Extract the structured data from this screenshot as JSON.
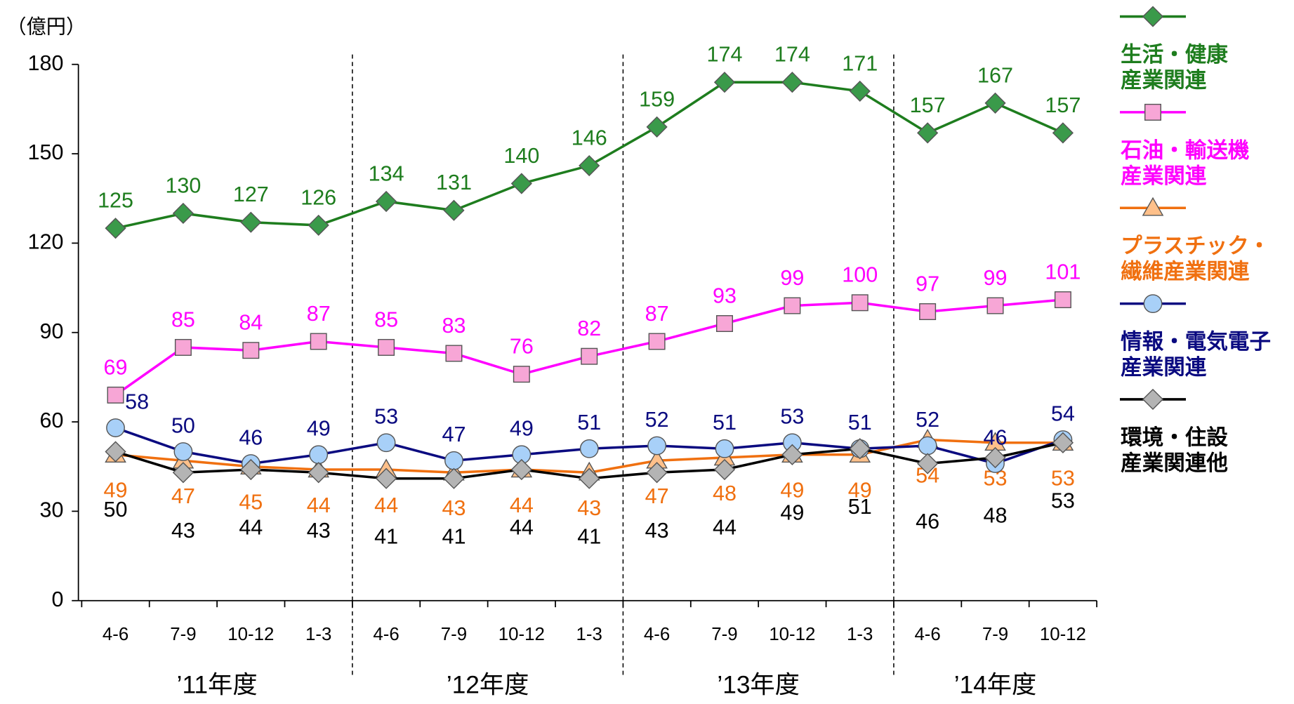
{
  "chart_data": {
    "type": "line",
    "y_label": "（億円）",
    "categories": [
      "4-6",
      "7-9",
      "10-12",
      "1-3",
      "4-6",
      "7-9",
      "10-12",
      "1-3",
      "4-6",
      "7-9",
      "10-12",
      "1-3",
      "4-6",
      "7-9",
      "10-12"
    ],
    "periods": [
      "’11年度",
      "’12年度",
      "’13年度",
      "’14年度"
    ],
    "ylim": [
      0,
      180
    ],
    "yticks": [
      0,
      30,
      60,
      90,
      120,
      150,
      180
    ],
    "grid": false,
    "legend": "right",
    "series": [
      {
        "name": "生活・健康\n産業関連",
        "color": "#1e7d1e",
        "marker": "diamond",
        "marker_color": "#3a9a4a",
        "values": [
          125,
          130,
          127,
          126,
          134,
          131,
          140,
          146,
          159,
          174,
          174,
          171,
          157,
          167,
          157
        ]
      },
      {
        "name": "石油・輸送機\n産業関連",
        "color": "#ff00ff",
        "marker": "square",
        "marker_color": "#f7a6d6",
        "values": [
          69,
          85,
          84,
          87,
          85,
          83,
          76,
          82,
          87,
          93,
          99,
          100,
          97,
          99,
          101
        ]
      },
      {
        "name": "プラスチック・\n繊維産業関連",
        "color": "#f07010",
        "marker": "triangle",
        "marker_color": "#ffc08a",
        "values": [
          49,
          47,
          45,
          44,
          44,
          43,
          44,
          43,
          47,
          48,
          49,
          49,
          54,
          53,
          53
        ]
      },
      {
        "name": "情報・電気電子\n産業関連",
        "color": "#0a0a80",
        "marker": "circle",
        "marker_color": "#a8d0f8",
        "values": [
          58,
          50,
          46,
          49,
          53,
          47,
          49,
          51,
          52,
          51,
          53,
          51,
          52,
          46,
          54
        ]
      },
      {
        "name": "環境・住設\n産業関連他",
        "color": "#000000",
        "marker": "diamond",
        "marker_color": "#b4b4b4",
        "values": [
          50,
          43,
          44,
          43,
          41,
          41,
          44,
          41,
          43,
          44,
          49,
          51,
          46,
          48,
          53
        ]
      }
    ]
  }
}
